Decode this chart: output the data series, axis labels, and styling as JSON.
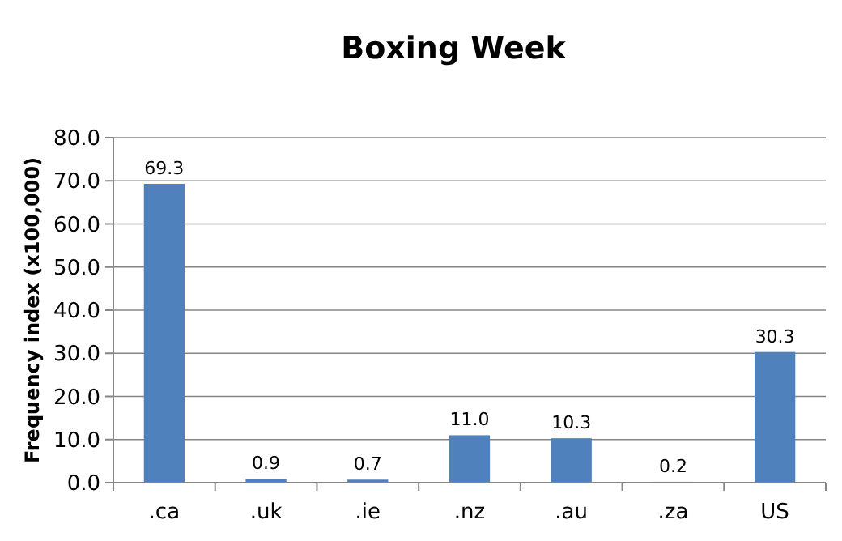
{
  "chart_data": {
    "type": "bar",
    "title": "Boxing Week",
    "ylabel": "Frequency index (x100,000)",
    "categories": [
      ".ca",
      ".uk",
      ".ie",
      ".nz",
      ".au",
      ".za",
      "US"
    ],
    "values": [
      69.3,
      0.9,
      0.7,
      11.0,
      10.3,
      0.2,
      30.3
    ],
    "value_labels": [
      "69.3",
      "0.9",
      "0.7",
      "11.0",
      "10.3",
      "0.2",
      "30.3"
    ],
    "color": "#4f81bd",
    "ylim": [
      0,
      80
    ],
    "yticks": [
      {
        "value": 0,
        "label": "0.0"
      },
      {
        "value": 10,
        "label": "10.0"
      },
      {
        "value": 20,
        "label": "20.0"
      },
      {
        "value": 30,
        "label": "30.0"
      },
      {
        "value": 40,
        "label": "40.0"
      },
      {
        "value": 50,
        "label": "50.0"
      },
      {
        "value": 60,
        "label": "60.0"
      },
      {
        "value": 70,
        "label": "70.0"
      },
      {
        "value": 80,
        "label": "80.0"
      }
    ],
    "grid": "y"
  }
}
